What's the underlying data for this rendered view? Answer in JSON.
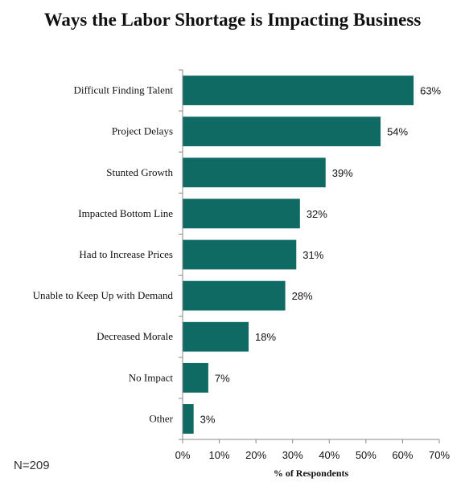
{
  "chart_data": {
    "type": "bar",
    "orientation": "horizontal",
    "title": "Ways the Labor Shortage is Impacting Business",
    "categories": [
      "Difficult Finding Talent",
      "Project Delays",
      "Stunted Growth",
      "Impacted Bottom Line",
      "Had to Increase Prices",
      "Unable to Keep Up with Demand",
      "Decreased Morale",
      "No Impact",
      "Other"
    ],
    "values": [
      63,
      54,
      39,
      32,
      31,
      28,
      18,
      7,
      3
    ],
    "value_labels": [
      "63%",
      "54%",
      "39%",
      "32%",
      "31%",
      "28%",
      "18%",
      "7%",
      "3%"
    ],
    "xlabel": "% of Respondents",
    "ylabel": "",
    "xlim": [
      0,
      70
    ],
    "x_ticks": [
      "0%",
      "10%",
      "20%",
      "30%",
      "40%",
      "50%",
      "60%",
      "70%"
    ],
    "bar_color": "#0e6a63",
    "grid": false
  },
  "note": "N=209"
}
